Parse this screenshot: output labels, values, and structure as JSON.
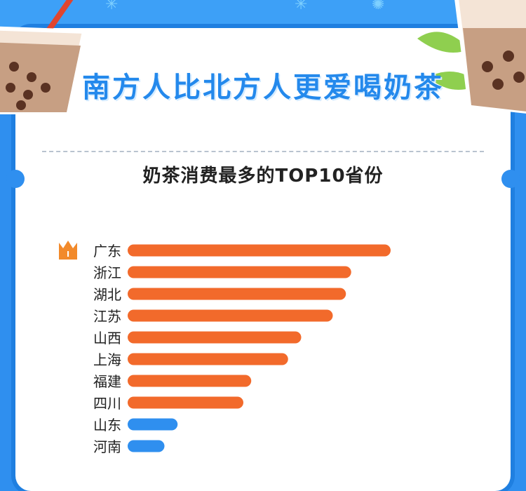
{
  "headline": "南方人比北方人更爱喝奶茶",
  "chart_data": {
    "type": "bar",
    "orientation": "horizontal",
    "title": "奶茶消费最多的TOP10省份",
    "categories": [
      "广东",
      "浙江",
      "湖北",
      "江苏",
      "山西",
      "上海",
      "福建",
      "四川",
      "山东",
      "河南"
    ],
    "values": [
      100,
      85,
      83,
      78,
      66,
      61,
      47,
      44,
      19,
      14
    ],
    "colors": [
      "#f26a2b",
      "#f26a2b",
      "#f26a2b",
      "#f26a2b",
      "#f26a2b",
      "#f26a2b",
      "#f26a2b",
      "#f26a2b",
      "#2f8fef",
      "#2f8fef"
    ],
    "rank_badge": "I",
    "badge_color": "#f28a2b",
    "xlim": [
      0,
      100
    ]
  }
}
